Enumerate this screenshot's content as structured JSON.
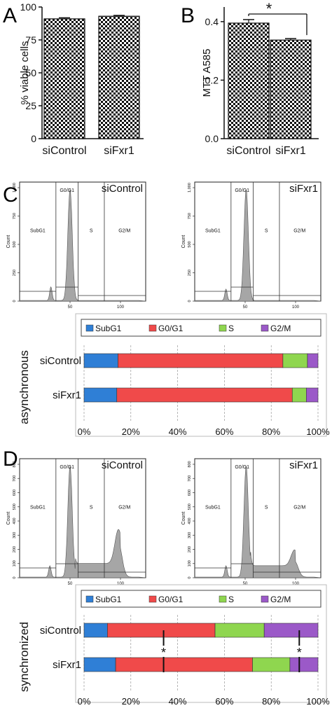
{
  "panels": {
    "A": "A",
    "B": "B",
    "C": "C",
    "D": "D"
  },
  "colors": {
    "SubG1": "#2f7fd6",
    "G0/G1": "#f04a4a",
    "S": "#8fd64f",
    "G2/M": "#9b59c8",
    "histogram_fill": "#a6a6a6"
  },
  "histogram_labels": {
    "count": "Count",
    "subg1": "SubG1",
    "g0g1": "G0/G1",
    "s": "S",
    "g2m": "G2/M",
    "x_ticks": [
      "50",
      "100"
    ],
    "y_ticks": [
      "0",
      "250",
      "500",
      "750",
      "1,000"
    ],
    "y_ticks_sync": [
      "0",
      "100",
      "200",
      "300",
      "400",
      "500",
      "600",
      "700",
      "800"
    ]
  },
  "conditions": {
    "C": {
      "label": "asynchronous",
      "left_title": "siControl",
      "right_title": "siFxr1"
    },
    "D": {
      "label": "synchronized",
      "left_title": "siControl",
      "right_title": "siFxr1"
    }
  },
  "significance": "*",
  "chart_data": [
    {
      "type": "bar",
      "panel": "A",
      "categories": [
        "siControl",
        "siFxr1"
      ],
      "values": [
        91,
        93
      ],
      "errors": [
        0.8,
        0.6
      ],
      "ylabel": "% viable cells",
      "ylim": [
        0,
        100
      ],
      "yticks": [
        "0",
        "25",
        "50",
        "75",
        "100"
      ]
    },
    {
      "type": "bar",
      "panel": "B",
      "categories": [
        "siControl",
        "siFxr1"
      ],
      "values": [
        0.395,
        0.337
      ],
      "errors": [
        0.012,
        0.005
      ],
      "ylabel": "MTT A585",
      "ylim": [
        0,
        0.45
      ],
      "yticks": [
        "0.0",
        "0.2",
        "0.4"
      ],
      "annotation": "*"
    },
    {
      "type": "bar",
      "panel": "C",
      "stacked": true,
      "orientation": "horizontal",
      "categories": [
        "siControl",
        "siFxr1"
      ],
      "series": [
        {
          "name": "SubG1",
          "values": [
            14.5,
            14
          ]
        },
        {
          "name": "G0/G1",
          "values": [
            70.5,
            75
          ]
        },
        {
          "name": "S",
          "values": [
            10.5,
            6
          ]
        },
        {
          "name": "G2/M",
          "values": [
            4.5,
            5
          ]
        }
      ],
      "xticks": [
        "0%",
        "20%",
        "40%",
        "60%",
        "80%",
        "100%"
      ],
      "xlim": [
        0,
        100
      ]
    },
    {
      "type": "bar",
      "panel": "D",
      "stacked": true,
      "orientation": "horizontal",
      "categories": [
        "siControl",
        "siFxr1"
      ],
      "series": [
        {
          "name": "SubG1",
          "values": [
            10,
            13.5
          ]
        },
        {
          "name": "G0/G1",
          "values": [
            46,
            58.5
          ]
        },
        {
          "name": "S",
          "values": [
            21,
            16
          ]
        },
        {
          "name": "G2/M",
          "values": [
            23,
            12
          ]
        }
      ],
      "xticks": [
        "0%",
        "20%",
        "40%",
        "60%",
        "80%",
        "100%"
      ],
      "xlim": [
        0,
        100
      ],
      "annotations": [
        "*",
        "*"
      ]
    }
  ]
}
